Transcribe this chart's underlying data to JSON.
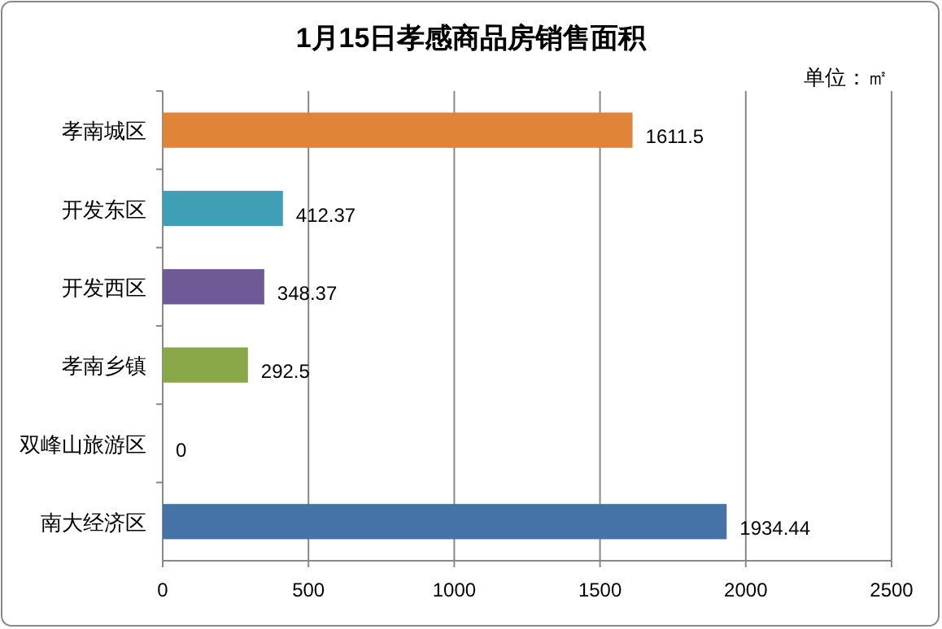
{
  "chart_data": {
    "type": "bar",
    "orientation": "horizontal",
    "title": "1月15日孝感商品房销售面积",
    "annotations": [
      "单位：㎡"
    ],
    "categories": [
      "孝南城区",
      "开发东区",
      "开发西区",
      "孝南乡镇",
      "双峰山旅游区",
      "南大经济区"
    ],
    "values": [
      1611.5,
      412.37,
      348.37,
      292.5,
      0,
      1934.44
    ],
    "colors": [
      "#e0843a",
      "#3fa0b5",
      "#6e5a96",
      "#8aa84a",
      "#4f81bd",
      "#4572a7"
    ],
    "xlim": [
      0,
      2500
    ],
    "xticks": [
      0,
      500,
      1000,
      1500,
      2000,
      2500
    ],
    "grid": "x",
    "data_labels": true
  }
}
